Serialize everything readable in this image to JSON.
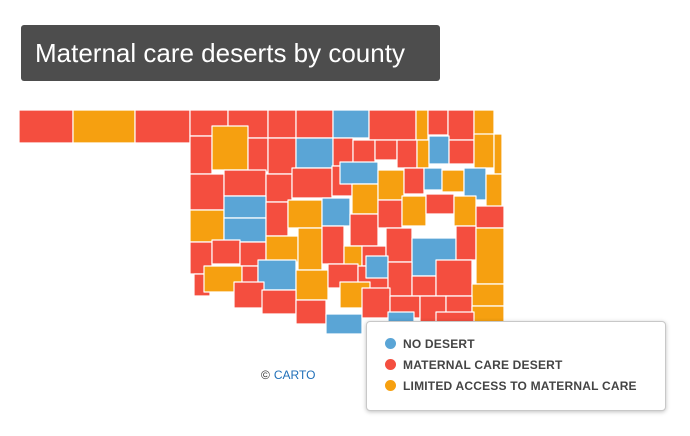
{
  "title": "Maternal care deserts by county",
  "legend": {
    "items": [
      {
        "label": "NO DESERT",
        "color": "#5aa5d6"
      },
      {
        "label": "MATERNAL CARE DESERT",
        "color": "#f44e3f"
      },
      {
        "label": "LIMITED ACCESS TO MATERNAL CARE",
        "color": "#f6a010"
      }
    ]
  },
  "attribution": {
    "symbol": "©",
    "link_text": "CARTO"
  },
  "colors": {
    "none": "#5aa5d6",
    "desert": "#f44e3f",
    "limited": "#f6a010",
    "border": "#ffffff"
  }
}
